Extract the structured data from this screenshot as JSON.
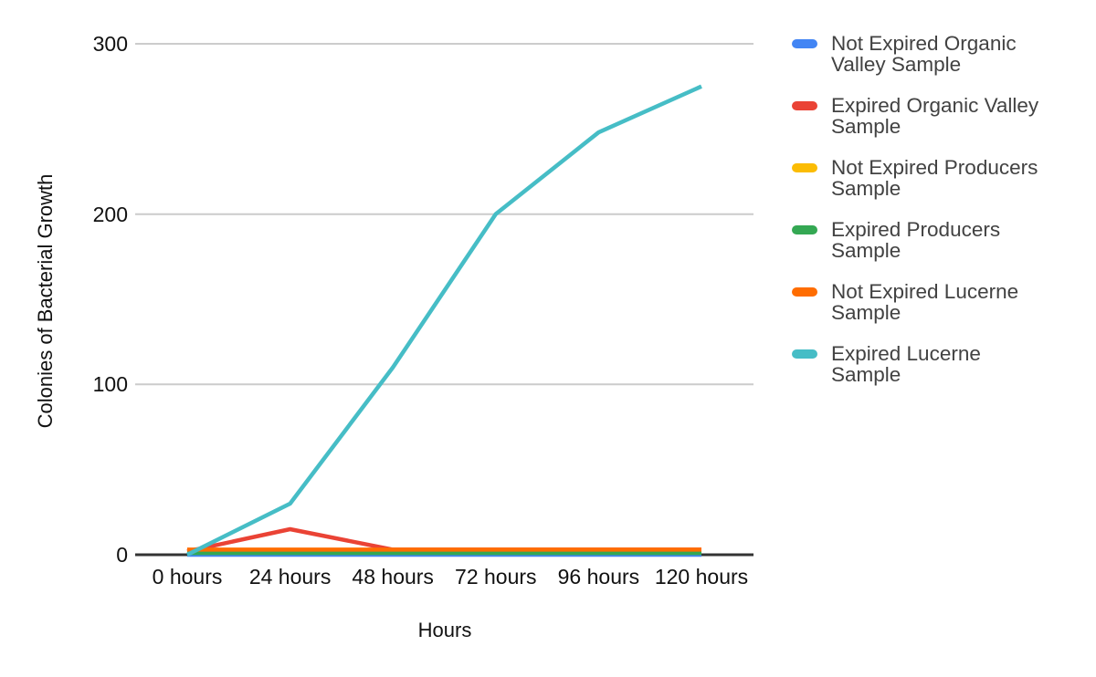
{
  "chart_data": {
    "type": "line",
    "title": "",
    "xlabel": "Hours",
    "ylabel": "Colonies of Bacterial Growth",
    "categories": [
      "0 hours",
      "24 hours",
      "48 hours",
      "72 hours",
      "96 hours",
      "120 hours"
    ],
    "x_values_hours": [
      0,
      24,
      48,
      72,
      96,
      120
    ],
    "y_ticks": [
      0,
      100,
      200,
      300
    ],
    "y_tick_labels": [
      "300",
      "200",
      "100",
      "0"
    ],
    "ylim": [
      0,
      300
    ],
    "grid": true,
    "legend_position": "right",
    "axis_color": "#333333",
    "gridline_color": "#cccccc",
    "series": [
      {
        "name": "Not Expired Organic Valley Sample",
        "label_lines": [
          "Not Expired Organic",
          "Valley Sample"
        ],
        "color": "#4285F4",
        "values": [
          0,
          0,
          0,
          0,
          0,
          0
        ]
      },
      {
        "name": "Expired Organic Valley Sample",
        "label_lines": [
          "Expired Organic Valley",
          "Sample"
        ],
        "color": "#EA4335",
        "values": [
          2,
          15,
          3,
          3,
          3,
          3
        ]
      },
      {
        "name": "Not Expired Producers Sample",
        "label_lines": [
          "Not Expired Producers",
          "Sample"
        ],
        "color": "#FBBC04",
        "values": [
          2,
          2,
          2,
          2,
          2,
          2
        ]
      },
      {
        "name": "Expired Producers Sample",
        "label_lines": [
          "Expired Producers",
          "Sample"
        ],
        "color": "#34A853",
        "values": [
          1,
          1,
          1,
          1,
          1,
          1
        ]
      },
      {
        "name": "Not Expired Lucerne Sample",
        "label_lines": [
          "Not Expired Lucerne",
          "Sample"
        ],
        "color": "#FF6D01",
        "values": [
          3,
          3,
          3,
          3,
          3,
          3
        ]
      },
      {
        "name": "Expired Lucerne Sample",
        "label_lines": [
          "Expired Lucerne",
          "Sample"
        ],
        "color": "#46BDC6",
        "values": [
          0,
          30,
          110,
          200,
          248,
          275
        ]
      }
    ]
  }
}
